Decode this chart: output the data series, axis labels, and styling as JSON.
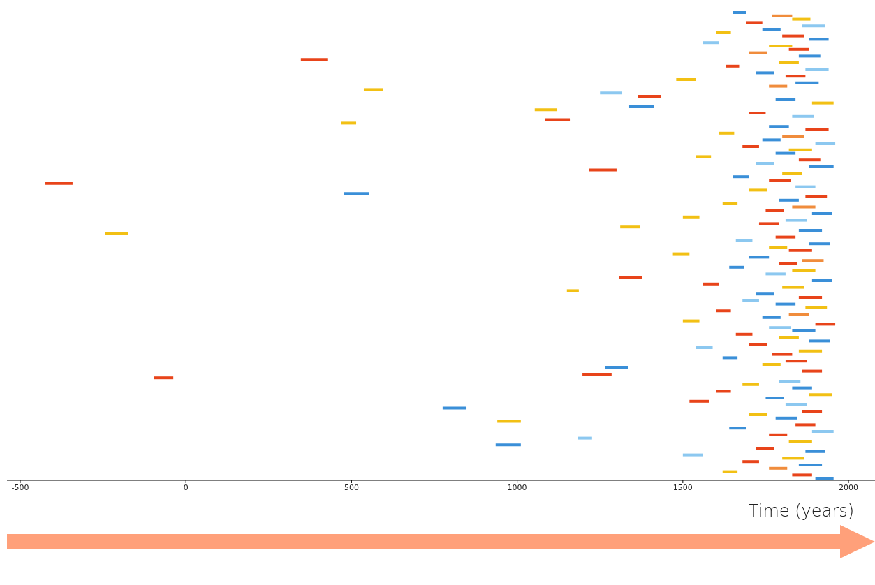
{
  "chart_data": {
    "type": "bar",
    "orientation": "horizontal",
    "xlabel": "Time (years)",
    "categories": [
      null,
      null,
      null,
      null,
      null,
      null,
      null,
      null,
      null,
      null,
      null,
      null,
      null,
      null,
      null,
      null,
      null,
      null,
      null,
      null,
      null,
      null,
      null,
      null,
      null,
      null,
      null,
      null,
      null,
      null,
      null,
      null,
      null,
      null,
      null,
      null,
      null,
      null,
      null,
      null,
      null,
      null,
      null,
      null,
      null,
      null,
      null,
      null,
      null,
      null,
      null,
      null,
      null,
      null,
      null,
      null,
      null,
      null,
      null,
      null,
      null,
      null,
      null,
      null,
      null,
      null,
      null,
      null,
      null,
      null,
      null,
      null,
      null,
      null,
      null,
      null,
      null,
      null,
      null,
      null,
      null,
      null,
      null,
      null,
      null,
      null,
      null,
      null,
      null,
      null,
      null,
      null,
      null,
      null,
      null,
      null,
      null,
      null,
      null,
      null,
      null,
      null,
      null,
      null,
      null,
      null,
      null,
      null,
      null,
      null,
      null,
      null,
      null,
      null,
      null,
      null,
      null,
      null,
      null,
      null,
      null,
      null,
      null,
      null,
      null,
      null,
      null,
      null,
      null,
      null,
      null,
      null,
      null,
      null,
      null,
      null,
      null,
      null,
      null,
      null
    ],
    "base": [
      1650,
      1770,
      1830,
      1690,
      1860,
      1740,
      1600,
      1800,
      1880,
      1560,
      1760,
      1820,
      1700,
      1850,
      347,
      1790,
      1630,
      1870,
      1720,
      1810,
      1480,
      1840,
      1760,
      537,
      1250,
      1365,
      1780,
      1890,
      1338,
      1053,
      1700,
      1830,
      1083,
      468,
      1760,
      1870,
      1610,
      1800,
      1740,
      1900,
      1680,
      1820,
      1780,
      1540,
      1850,
      1720,
      1880,
      1216,
      1800,
      1650,
      1760,
      -424,
      1840,
      1700,
      476,
      1870,
      1790,
      1620,
      1830,
      1750,
      1890,
      1500,
      1810,
      1730,
      1311,
      1850,
      -243,
      1780,
      1660,
      1880,
      1760,
      1820,
      1470,
      1700,
      1860,
      1790,
      1640,
      1830,
      1750,
      1308,
      1890,
      1560,
      1800,
      1150,
      1720,
      1850,
      1680,
      1780,
      1870,
      1600,
      1820,
      1740,
      1500,
      1900,
      1760,
      1830,
      1660,
      1790,
      1880,
      1700,
      1540,
      1850,
      1770,
      1620,
      1810,
      1740,
      1266,
      1860,
      1197,
      -97,
      1790,
      1680,
      1830,
      1600,
      1880,
      1750,
      1520,
      1810,
      775,
      1860,
      1700,
      1780,
      940,
      1840,
      1640,
      1890,
      1760,
      1184,
      1820,
      935,
      1720,
      1870,
      1500,
      1800,
      1680,
      1850,
      1760,
      1620,
      1830,
      1900
    ],
    "values": [
      40,
      60,
      55,
      50,
      70,
      55,
      45,
      65,
      60,
      50,
      70,
      60,
      55,
      65,
      80,
      60,
      40,
      70,
      55,
      60,
      60,
      70,
      55,
      59,
      67,
      70,
      60,
      65,
      74,
      68,
      50,
      65,
      76,
      46,
      60,
      70,
      45,
      65,
      55,
      60,
      50,
      70,
      60,
      45,
      65,
      55,
      75,
      84,
      60,
      50,
      65,
      82,
      60,
      55,
      76,
      65,
      60,
      45,
      70,
      55,
      60,
      50,
      65,
      60,
      59,
      70,
      68,
      60,
      50,
      65,
      55,
      70,
      50,
      60,
      65,
      55,
      45,
      70,
      60,
      68,
      60,
      50,
      65,
      36,
      55,
      70,
      50,
      60,
      65,
      45,
      60,
      55,
      50,
      60,
      65,
      70,
      50,
      60,
      65,
      55,
      50,
      70,
      60,
      45,
      65,
      55,
      68,
      60,
      88,
      59,
      65,
      50,
      60,
      45,
      70,
      55,
      60,
      65,
      72,
      60,
      55,
      65,
      71,
      60,
      50,
      65,
      55,
      42,
      70,
      76,
      55,
      60,
      60,
      65,
      50,
      70,
      55,
      45,
      60,
      55
    ],
    "colors": [
      "#3a8fd8",
      "#f08c3c",
      "#f2c014",
      "#e8441a",
      "#8cc8f0",
      "#3a8fd8",
      "#f2c014",
      "#e8441a",
      "#3a8fd8",
      "#8cc8f0",
      "#f2c014",
      "#e8441a",
      "#f08c3c",
      "#3a8fd8",
      "#e8441a",
      "#f2c014",
      "#e8441a",
      "#8cc8f0",
      "#3a8fd8",
      "#e8441a",
      "#f2c014",
      "#3a8fd8",
      "#f08c3c",
      "#f2c014",
      "#8cc8f0",
      "#e8441a",
      "#3a8fd8",
      "#f2c014",
      "#3a8fd8",
      "#f2c014",
      "#e8441a",
      "#8cc8f0",
      "#e8441a",
      "#f2c014",
      "#3a8fd8",
      "#e8441a",
      "#f2c014",
      "#f08c3c",
      "#3a8fd8",
      "#8cc8f0",
      "#e8441a",
      "#f2c014",
      "#3a8fd8",
      "#f2c014",
      "#e8441a",
      "#8cc8f0",
      "#3a8fd8",
      "#e8441a",
      "#f2c014",
      "#3a8fd8",
      "#e8441a",
      "#e8441a",
      "#8cc8f0",
      "#f2c014",
      "#3a8fd8",
      "#e8441a",
      "#3a8fd8",
      "#f2c014",
      "#f08c3c",
      "#e8441a",
      "#3a8fd8",
      "#f2c014",
      "#8cc8f0",
      "#e8441a",
      "#f2c014",
      "#3a8fd8",
      "#f2c014",
      "#e8441a",
      "#8cc8f0",
      "#3a8fd8",
      "#f2c014",
      "#e8441a",
      "#f2c014",
      "#3a8fd8",
      "#f08c3c",
      "#e8441a",
      "#3a8fd8",
      "#f2c014",
      "#8cc8f0",
      "#e8441a",
      "#3a8fd8",
      "#e8441a",
      "#f2c014",
      "#f2c014",
      "#3a8fd8",
      "#e8441a",
      "#8cc8f0",
      "#3a8fd8",
      "#f2c014",
      "#e8441a",
      "#f08c3c",
      "#3a8fd8",
      "#f2c014",
      "#e8441a",
      "#8cc8f0",
      "#3a8fd8",
      "#e8441a",
      "#f2c014",
      "#3a8fd8",
      "#e8441a",
      "#8cc8f0",
      "#f2c014",
      "#e8441a",
      "#3a8fd8",
      "#e8441a",
      "#f2c014",
      "#3a8fd8",
      "#e8441a",
      "#e8441a",
      "#e8441a",
      "#8cc8f0",
      "#f2c014",
      "#3a8fd8",
      "#e8441a",
      "#f2c014",
      "#3a8fd8",
      "#e8441a",
      "#8cc8f0",
      "#3a8fd8",
      "#e8441a",
      "#f2c014",
      "#3a8fd8",
      "#f2c014",
      "#e8441a",
      "#3a8fd8",
      "#8cc8f0",
      "#e8441a",
      "#8cc8f0",
      "#f2c014",
      "#3a8fd8",
      "#e8441a",
      "#3a8fd8",
      "#8cc8f0",
      "#f2c014",
      "#e8441a",
      "#3a8fd8",
      "#f08c3c",
      "#f2c014",
      "#e8441a",
      "#3a8fd8"
    ],
    "xlim": [
      -540,
      2080
    ],
    "xticks": [
      -500,
      0,
      500,
      1000,
      1500,
      2000
    ],
    "tick_labels": "x",
    "grid": false
  }
}
